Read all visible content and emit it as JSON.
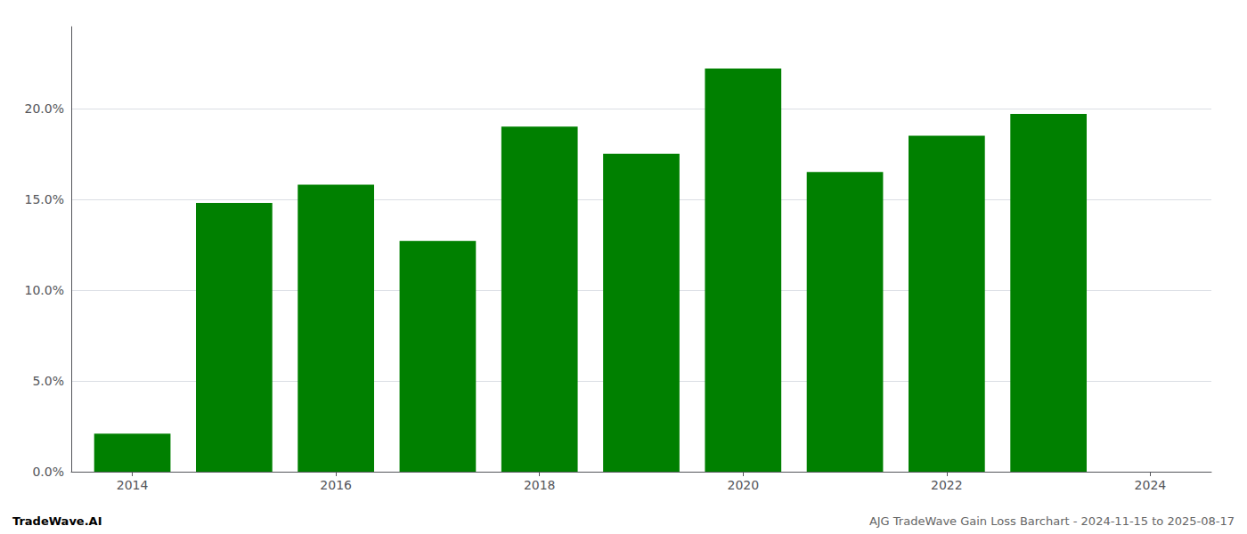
{
  "chart_data": {
    "type": "bar",
    "x": [
      2014,
      2015,
      2016,
      2017,
      2018,
      2019,
      2020,
      2021,
      2022,
      2023
    ],
    "values": [
      0.021,
      0.148,
      0.158,
      0.127,
      0.19,
      0.175,
      0.222,
      0.165,
      0.185,
      0.197
    ],
    "color": "#008000",
    "xlim": [
      2013.4,
      2024.6
    ],
    "xticks": [
      2014,
      2016,
      2018,
      2020,
      2022,
      2024
    ],
    "ylim": [
      0.0,
      0.245
    ],
    "yticks": [
      {
        "value": 0.0,
        "label": "0.0%"
      },
      {
        "value": 0.05,
        "label": "5.0%"
      },
      {
        "value": 0.1,
        "label": "10.0%"
      },
      {
        "value": 0.15,
        "label": "15.0%"
      },
      {
        "value": 0.2,
        "label": "20.0%"
      }
    ],
    "grid": true,
    "annotations": [
      "TradeWave.AI",
      "AJG TradeWave Gain Loss Barchart - 2024-11-15 to 2025-08-17"
    ]
  }
}
